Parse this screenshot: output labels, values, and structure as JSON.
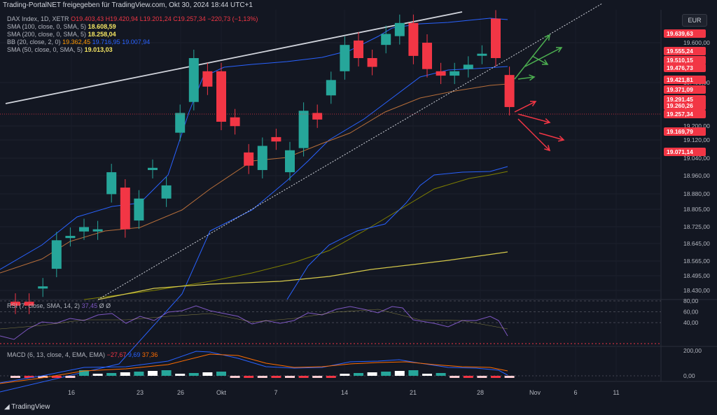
{
  "header": {
    "credit": "Trading-PortalNET freigegeben für TradingView.com, Okt 30, 2024 18:44 UTC+1",
    "currency_button": "EUR",
    "logo": "TradingView"
  },
  "legend": {
    "main": {
      "name": "DAX Index, 1D, XETR",
      "open": "O19.403,43",
      "high": "H19.420,94",
      "low": "L19.201,24",
      "close": "C19.257,34",
      "change": "−220,73 (−1,13%)"
    },
    "sma100": {
      "name": "SMA (100, close, 0, SMA, 5)",
      "value": "18.608,59"
    },
    "sma200": {
      "name": "SMA (200, close, 0, SMA, 5)",
      "value": "18.258,04"
    },
    "bb": {
      "name": "BB (20, close, 2, 0)",
      "basis": "19.362,45",
      "upper": "19.716,95",
      "lower": "19.007,94"
    },
    "sma50": {
      "name": "SMA (50, close, 0, SMA, 5)",
      "value": "19.013,03"
    },
    "rsi": {
      "name": "RSI (7, close, SMA, 14, 2)",
      "value": "37,45",
      "extra": "Ø Ø"
    },
    "macd": {
      "name": "MACD (6, 13, close, 4, EMA, EMA)",
      "hist": "−27,67",
      "macd": "9,69",
      "signal": "37,36"
    }
  },
  "colors": {
    "bg": "#131722",
    "up": "#26a69a",
    "down": "#f23645",
    "grid": "#1e222d",
    "bb": "#2962ff",
    "basis": "#b76e3a",
    "sma50": "#808000",
    "sma100": "#d4c84a",
    "rsi": "#7e57c2",
    "macd": "#2962ff",
    "signal": "#ff6d00",
    "axis_text": "#b2b5be"
  },
  "chart_data": {
    "type": "candlestick",
    "y_ticks": [
      "19.600,00",
      "19.400,00",
      "19.200,00",
      "19.120,00",
      "19.040,00",
      "18.960,00",
      "18.880,00",
      "18.805,00",
      "18.725,00",
      "18.645,00",
      "18.565,00",
      "18.495,00",
      "18.430,00"
    ],
    "x_ticks": [
      "16",
      "23",
      "26",
      "Okt",
      "7",
      "14",
      "21",
      "28",
      "Nov",
      "6",
      "11"
    ],
    "price_labels": [
      "19.639,63",
      "19.555,24",
      "19.510,15",
      "19.476,73",
      "19.421,81",
      "19.371,09",
      "19.291,45",
      "19.260,26",
      "19.257,34",
      "19.169,79",
      "19.071,14"
    ],
    "candles": [
      {
        "o": 18370,
        "c": 18352
      },
      {
        "o": 18370,
        "c": 18352
      },
      {
        "o": 18430,
        "c": 18440
      },
      {
        "o": 18520,
        "c": 18650
      },
      {
        "o": 18660,
        "c": 18670
      },
      {
        "o": 18690,
        "c": 18710
      },
      {
        "o": 18690,
        "c": 18700
      },
      {
        "o": 18860,
        "c": 18960
      },
      {
        "o": 18890,
        "c": 18700
      },
      {
        "o": 18740,
        "c": 18840
      },
      {
        "o": 18970,
        "c": 18980
      },
      {
        "o": 18840,
        "c": 18900
      },
      {
        "o": 19140,
        "c": 19230
      },
      {
        "o": 19280,
        "c": 19480
      },
      {
        "o": 19420,
        "c": 19350
      },
      {
        "o": 19420,
        "c": 19190
      },
      {
        "o": 19210,
        "c": 19170
      },
      {
        "o": 19050,
        "c": 18990
      },
      {
        "o": 18970,
        "c": 19080
      },
      {
        "o": 19120,
        "c": 19100
      },
      {
        "o": 18960,
        "c": 19060
      },
      {
        "o": 19070,
        "c": 19240
      },
      {
        "o": 19230,
        "c": 19200
      },
      {
        "o": 19310,
        "c": 19380
      },
      {
        "o": 19420,
        "c": 19540
      },
      {
        "o": 19560,
        "c": 19480
      },
      {
        "o": 19480,
        "c": 19440
      },
      {
        "o": 19540,
        "c": 19590
      },
      {
        "o": 19580,
        "c": 19640
      },
      {
        "o": 19640,
        "c": 19490
      },
      {
        "o": 19550,
        "c": 19430
      },
      {
        "o": 19420,
        "c": 19400
      },
      {
        "o": 19400,
        "c": 19420
      },
      {
        "o": 19430,
        "c": 19450
      },
      {
        "o": 19500,
        "c": 19500
      },
      {
        "o": 19660,
        "c": 19480
      },
      {
        "o": 19403,
        "c": 19257
      }
    ],
    "rsi": {
      "ylim": [
        0,
        100
      ],
      "levels": [
        "80,00",
        "60,00",
        "40,00"
      ]
    },
    "macd": {
      "levels": [
        "200,00",
        "0,00"
      ]
    }
  }
}
